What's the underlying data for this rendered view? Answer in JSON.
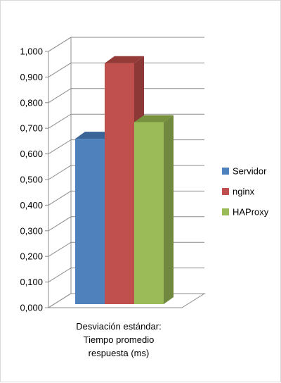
{
  "chart_data": {
    "type": "bar",
    "style": "3d-clustered-column",
    "categories": [
      "Desviación estándar: Tiempo promedio respuesta (ms)"
    ],
    "category_label_lines": [
      "Desviación estándar:",
      "Tiempo promedio",
      "respuesta (ms)"
    ],
    "series": [
      {
        "name": "Servidor",
        "values": [
          0.67
        ],
        "color": "#4f81bd",
        "side_color": "#385d8a",
        "top_color": "#3a6596"
      },
      {
        "name": "nginx",
        "values": [
          0.965
        ],
        "color": "#c0504d",
        "side_color": "#8c3836",
        "top_color": "#943b38"
      },
      {
        "name": "HAProxy",
        "values": [
          0.735
        ],
        "color": "#9bbb59",
        "side_color": "#71893f",
        "top_color": "#77913f"
      }
    ],
    "ylim": [
      0,
      1
    ],
    "y_ticks": [
      "0,000",
      "0,100",
      "0,200",
      "0,300",
      "0,400",
      "0,500",
      "0,600",
      "0,700",
      "0,800",
      "0,900",
      "1,000"
    ],
    "grid": true,
    "legend_position": "right"
  }
}
